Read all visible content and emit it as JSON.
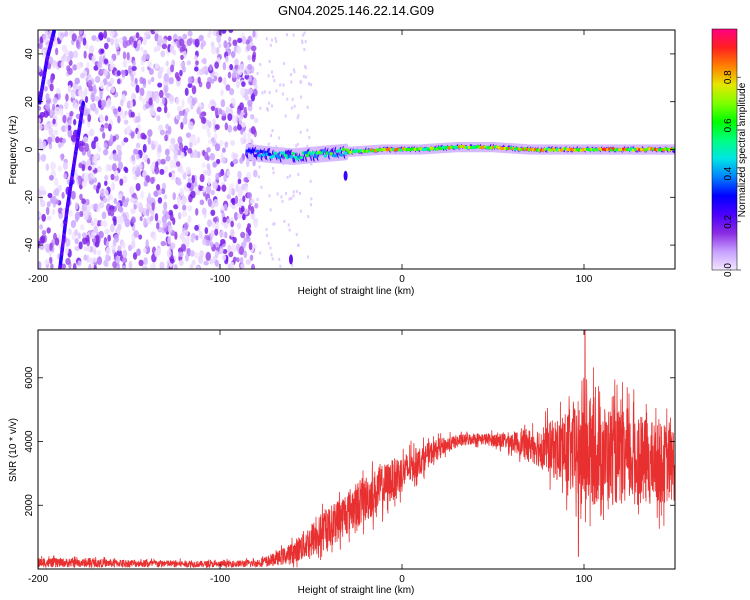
{
  "title": "GN04.2025.146.22.14.G09",
  "chart_data": [
    {
      "type": "heatmap",
      "xlabel": "Height of straight line (km)",
      "ylabel": "Frequency (Hz)",
      "xlim": [
        -200,
        150
      ],
      "ylim": [
        -50,
        50
      ],
      "xticks": [
        -200,
        -100,
        0,
        100
      ],
      "yticks": [
        -40,
        -20,
        0,
        20,
        40
      ],
      "grid": false,
      "colorbar": {
        "label": "Normalized spectral amplitude",
        "range": [
          0,
          1
        ],
        "ticks": [
          0.0,
          0.2,
          0.4,
          0.6,
          0.8
        ],
        "tick_labels": [
          "0.0",
          "0.2",
          "0.4",
          "0.6",
          "0.8"
        ],
        "colors": [
          "#f2e6ff",
          "#c7a0ff",
          "#8a2be2",
          "#4b00ff",
          "#0000ff",
          "#0080ff",
          "#00e5e5",
          "#00ff80",
          "#00ff00",
          "#80ff00",
          "#e6e600",
          "#ff8000",
          "#ff2020",
          "#ff0080"
        ]
      },
      "features": {
        "noise_region_x": [
          -200,
          -80
        ],
        "carrier_line": {
          "x_range": [
            -85,
            150
          ],
          "frequency": 0,
          "segments": [
            {
              "x": -85,
              "y": -1,
              "amp": 0.35
            },
            {
              "x": -75,
              "y": -2,
              "amp": 0.45
            },
            {
              "x": -60,
              "y": -3,
              "amp": 0.55
            },
            {
              "x": -45,
              "y": -2,
              "amp": 0.65
            },
            {
              "x": -30,
              "y": -1,
              "amp": 0.7
            },
            {
              "x": -10,
              "y": 0,
              "amp": 0.9
            },
            {
              "x": 10,
              "y": 0,
              "amp": 0.75
            },
            {
              "x": 30,
              "y": 1,
              "amp": 0.85
            },
            {
              "x": 50,
              "y": 1,
              "amp": 0.8
            },
            {
              "x": 70,
              "y": 0,
              "amp": 0.9
            },
            {
              "x": 90,
              "y": 0,
              "amp": 0.85
            },
            {
              "x": 110,
              "y": 0,
              "amp": 0.9
            },
            {
              "x": 130,
              "y": 0,
              "amp": 0.88
            },
            {
              "x": 150,
              "y": 0,
              "amp": 0.9
            }
          ]
        },
        "slanted_lines": [
          {
            "points": [
              [
                -199,
                20
              ],
              [
                -195,
                38
              ],
              [
                -191,
                50
              ]
            ],
            "amp": 0.2
          },
          {
            "points": [
              [
                -188,
                -50
              ],
              [
                -184,
                -25
              ],
              [
                -179,
                0
              ],
              [
                -175,
                20
              ]
            ],
            "amp": 0.2
          }
        ],
        "spots": [
          {
            "x": -31,
            "y": -11,
            "amp": 0.25
          },
          {
            "x": -61,
            "y": -46,
            "amp": 0.2
          }
        ]
      }
    },
    {
      "type": "line",
      "xlabel": "Height of straight line (km)",
      "ylabel": "SNR (10 * v/v)",
      "xlim": [
        -200,
        150
      ],
      "ylim": [
        0,
        7500
      ],
      "xticks": [
        -200,
        -100,
        0,
        100
      ],
      "yticks": [
        2000,
        4000,
        6000
      ],
      "grid": false,
      "color": "#e83030",
      "series_envelope": {
        "x": [
          -200,
          -150,
          -100,
          -80,
          -70,
          -60,
          -50,
          -40,
          -30,
          -20,
          -10,
          0,
          10,
          20,
          30,
          40,
          50,
          60,
          70,
          80,
          90,
          100,
          110,
          120,
          130,
          140,
          150
        ],
        "mean": [
          200,
          180,
          150,
          180,
          300,
          500,
          900,
          1300,
          1800,
          2200,
          2600,
          3000,
          3400,
          3800,
          4000,
          4100,
          4050,
          4000,
          3900,
          3800,
          3700,
          3700,
          3600,
          3500,
          3400,
          3300,
          3300
        ],
        "spread": [
          150,
          120,
          100,
          120,
          200,
          350,
          550,
          650,
          700,
          750,
          700,
          600,
          450,
          300,
          200,
          180,
          200,
          300,
          500,
          800,
          1200,
          1800,
          1600,
          1500,
          1400,
          1300,
          1200
        ]
      },
      "peaks": [
        {
          "x": 100.5,
          "y": 7500
        },
        {
          "x": 97,
          "y": 400
        }
      ]
    }
  ]
}
